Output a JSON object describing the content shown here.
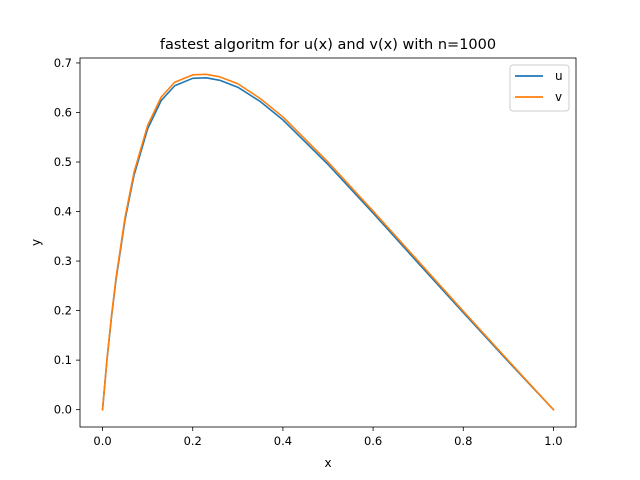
{
  "chart_data": {
    "type": "line",
    "title": "fastest algoritm for u(x) and v(x) with n=1000",
    "xlabel": "x",
    "ylabel": "y",
    "xlim": [
      -0.05,
      1.05
    ],
    "ylim": [
      -0.035,
      0.71
    ],
    "x_ticks": [
      "0.0",
      "0.2",
      "0.4",
      "0.6",
      "0.8",
      "1.0"
    ],
    "y_ticks": [
      "0.0",
      "0.1",
      "0.2",
      "0.3",
      "0.4",
      "0.5",
      "0.6",
      "0.7"
    ],
    "grid": false,
    "legend_position": "top-right",
    "x": [
      0.0,
      0.01,
      0.02,
      0.03,
      0.05,
      0.07,
      0.1,
      0.13,
      0.16,
      0.2,
      0.23,
      0.26,
      0.3,
      0.35,
      0.4,
      0.5,
      0.6,
      0.7,
      0.8,
      0.9,
      1.0
    ],
    "series": [
      {
        "name": "u",
        "color": "#1f77b4",
        "values": [
          0.0,
          0.102,
          0.188,
          0.263,
          0.384,
          0.474,
          0.567,
          0.624,
          0.654,
          0.669,
          0.67,
          0.665,
          0.651,
          0.622,
          0.585,
          0.495,
          0.397,
          0.296,
          0.196,
          0.097,
          0.0
        ]
      },
      {
        "name": "v",
        "color": "#ff7f0e",
        "values": [
          0.0,
          0.104,
          0.191,
          0.267,
          0.389,
          0.48,
          0.574,
          0.631,
          0.661,
          0.676,
          0.677,
          0.672,
          0.658,
          0.628,
          0.591,
          0.5,
          0.401,
          0.3,
          0.199,
          0.099,
          0.0
        ]
      }
    ]
  }
}
